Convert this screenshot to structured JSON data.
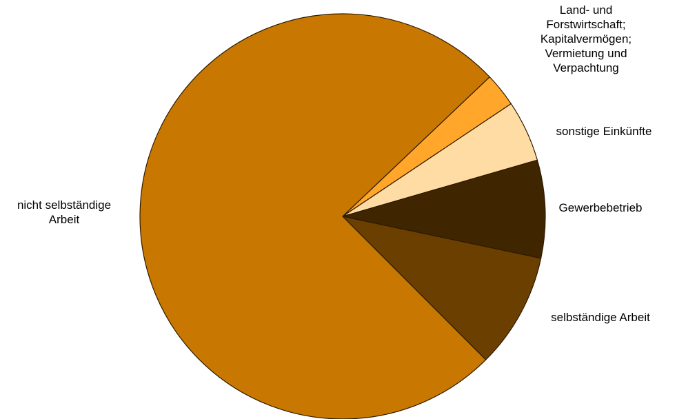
{
  "chart_data": {
    "type": "pie",
    "title": "",
    "start_angle_deg": 43.5,
    "direction": "clockwise",
    "slices": [
      {
        "label": "Land- und Forstwirtschaft; Kapitalvermögen; Vermietung und Verpachtung",
        "label_lines": [
          "Land- und",
          "Forstwirtschaft;",
          "Kapitalvermögen;",
          "Vermietung und",
          "Verpachtung"
        ],
        "value": 2.7,
        "color": "#FFA62B"
      },
      {
        "label": "sonstige Einkünfte",
        "label_lines": [
          "sonstige Einkünfte"
        ],
        "value": 4.9,
        "color": "#FFDCA4"
      },
      {
        "label": "Gewerbebetrieb",
        "label_lines": [
          "Gewerbebetrieb"
        ],
        "value": 7.8,
        "color": "#3F2500"
      },
      {
        "label": "selbständige Arbeit",
        "label_lines": [
          "selbständige Arbeit"
        ],
        "value": 9.2,
        "color": "#6B3F00"
      },
      {
        "label": "nicht selbständige Arbeit",
        "label_lines": [
          "nicht selbständige",
          "Arbeit"
        ],
        "value": 75.4,
        "color": "#C87800"
      }
    ]
  }
}
